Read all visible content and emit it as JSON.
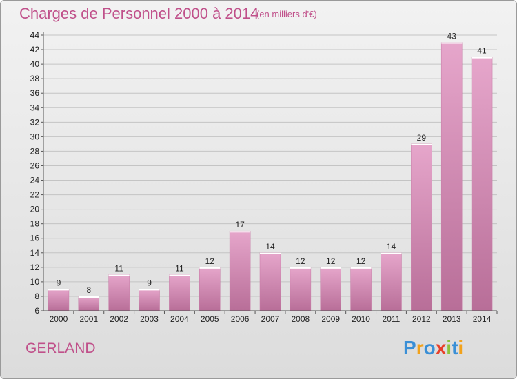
{
  "chart_data": {
    "type": "bar",
    "title": "Charges de Personnel 2000 à 2014",
    "subtitle": "(en milliers d'€)",
    "categories": [
      "2000",
      "2001",
      "2002",
      "2003",
      "2004",
      "2005",
      "2006",
      "2007",
      "2008",
      "2009",
      "2010",
      "2011",
      "2012",
      "2013",
      "2014"
    ],
    "values": [
      9,
      8,
      11,
      9,
      11,
      12,
      17,
      14,
      12,
      12,
      12,
      14,
      29,
      43,
      41
    ],
    "ylim": [
      6,
      44
    ],
    "yticks": [
      6,
      8,
      10,
      12,
      14,
      16,
      18,
      20,
      22,
      24,
      26,
      28,
      30,
      32,
      34,
      36,
      38,
      40,
      42,
      44
    ],
    "grid": true,
    "bar_color": "#d98bb6"
  },
  "place_name": "GERLAND",
  "logo": {
    "letters": [
      "P",
      "r",
      "o",
      "x",
      "i",
      "t",
      "i"
    ],
    "colors": [
      "#3a8fd6",
      "#f2a21b",
      "#3a8fd6",
      "#e8402a",
      "#8cc43c",
      "#3a8fd6",
      "#f2a21b"
    ]
  }
}
